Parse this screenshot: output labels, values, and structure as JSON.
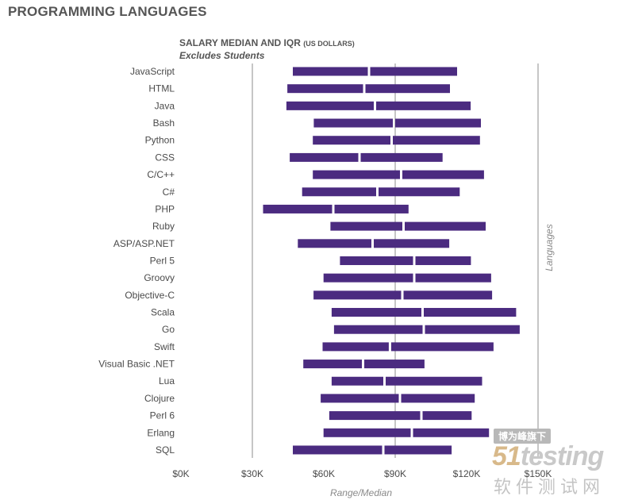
{
  "header": {
    "section_title": "PROGRAMMING LANGUAGES",
    "chart_title": "SALARY MEDIAN AND IQR",
    "chart_title_unit": "(US DOLLARS)",
    "chart_subtitle": "Excludes Students"
  },
  "chart_data": {
    "type": "bar",
    "orientation": "horizontal",
    "encoding": "range bar with median split",
    "categories": [
      "JavaScript",
      "HTML",
      "Java",
      "Bash",
      "Python",
      "CSS",
      "C/C++",
      "C#",
      "PHP",
      "Ruby",
      "ASP/ASP.NET",
      "Perl 5",
      "Groovy",
      "Objective-C",
      "Scala",
      "Go",
      "Swift",
      "Visual Basic .NET",
      "Lua",
      "Clojure",
      "Perl 6",
      "Erlang",
      "SQL"
    ],
    "q1": [
      47000,
      44700,
      44300,
      55800,
      55400,
      45700,
      55400,
      50900,
      34500,
      62800,
      49100,
      66800,
      59900,
      55700,
      63300,
      64300,
      59500,
      51400,
      63300,
      58700,
      62300,
      59900,
      47000
    ],
    "median": [
      79000,
      77000,
      81500,
      89500,
      88500,
      75000,
      92500,
      82500,
      64000,
      93500,
      80500,
      98000,
      98000,
      93000,
      101500,
      102000,
      87800,
      76500,
      85500,
      92000,
      101000,
      97000,
      85000
    ],
    "q3": [
      116000,
      113000,
      121700,
      126000,
      125600,
      109900,
      127300,
      117100,
      95600,
      128000,
      112700,
      121800,
      130300,
      130700,
      140800,
      142300,
      131300,
      102300,
      126500,
      123400,
      122100,
      129400,
      113700
    ],
    "xlim": [
      0,
      150000
    ],
    "ticks": [
      0,
      30000,
      60000,
      90000,
      120000,
      150000
    ],
    "tick_labels": [
      "$0K",
      "$30K",
      "$60K",
      "$90K",
      "$120K",
      "$150K"
    ],
    "gridlines": [
      30000,
      90000,
      150000
    ],
    "xlabel": "Range/Median",
    "ylabel": "Languages",
    "bar_color": "#4b2b80",
    "grid_color": "#8c8c8c",
    "grid": true,
    "legend": "none"
  },
  "watermark": {
    "tag": "博为峰旗下",
    "logo_num": "51",
    "logo_text": "testing",
    "cn_text": "软件测试网"
  }
}
